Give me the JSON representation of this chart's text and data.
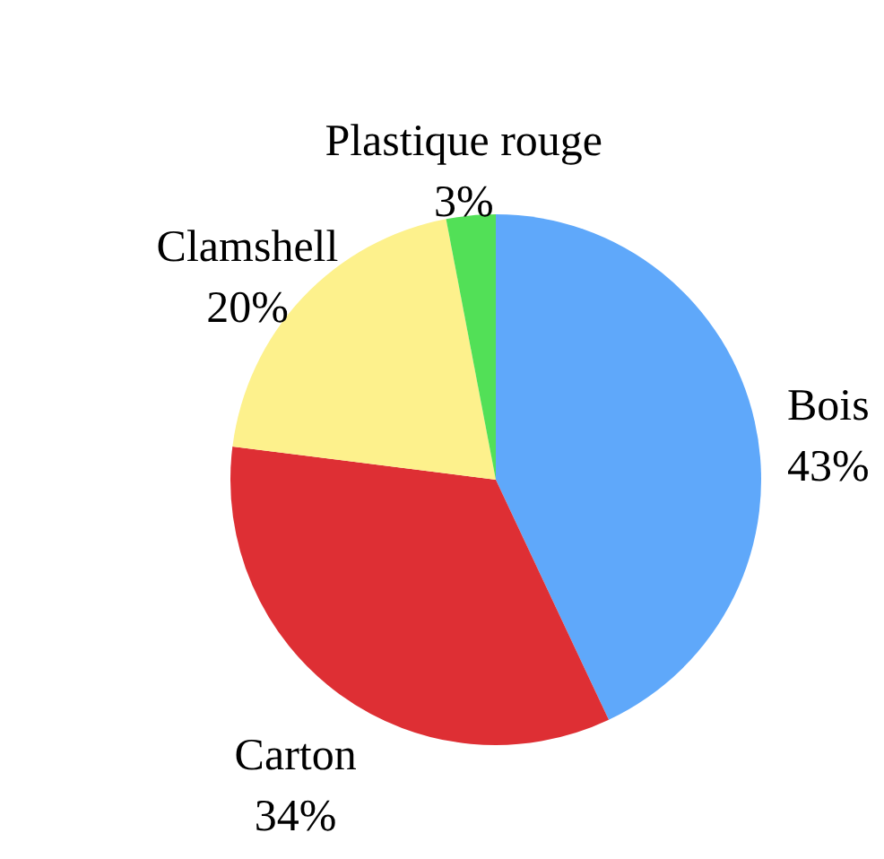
{
  "chart_data": {
    "type": "pie",
    "categories": [
      "Bois",
      "Carton",
      "Clamshell",
      "Plastique rouge"
    ],
    "values": [
      43,
      34,
      20,
      3
    ],
    "colors": [
      "#5fa8fa",
      "#de2f34",
      "#fdf18c",
      "#52e057"
    ],
    "value_labels": [
      "43%",
      "34%",
      "20%",
      "3%"
    ]
  }
}
